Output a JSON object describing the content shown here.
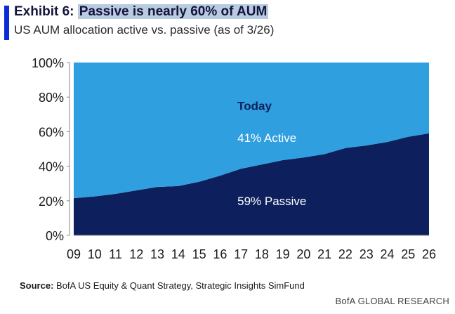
{
  "header": {
    "exhibit_label": "Exhibit 6:",
    "title": "Passive is nearly 60% of AUM",
    "subtitle": "US AUM allocation active vs. passive (as of 3/26)"
  },
  "footer": {
    "source_label": "Source:",
    "source_text": "BofA US Equity & Quant Strategy, Strategic Insights SimFund",
    "brand": "BofA GLOBAL RESEARCH"
  },
  "colors": {
    "passive": "#0d1f5c",
    "active": "#2f9fe0",
    "axis": "#8a8a8a"
  },
  "chart_data": {
    "type": "area",
    "stacked": true,
    "x": [
      9,
      10,
      11,
      12,
      13,
      14,
      15,
      16,
      17,
      18,
      19,
      20,
      21,
      22,
      23,
      24,
      25,
      26
    ],
    "tick_labels": [
      "09",
      "10",
      "11",
      "12",
      "13",
      "14",
      "15",
      "16",
      "17",
      "18",
      "19",
      "20",
      "21",
      "22",
      "23",
      "24",
      "25",
      "26"
    ],
    "ylim": [
      0,
      100
    ],
    "yticks": [
      0,
      20,
      40,
      60,
      80,
      100
    ],
    "ytick_labels": [
      "0%",
      "20%",
      "40%",
      "60%",
      "80%",
      "100%"
    ],
    "series": [
      {
        "key": "passive",
        "values": [
          21.5,
          22.5,
          24,
          26,
          28,
          28.5,
          31,
          34.5,
          38.5,
          41,
          43.5,
          45,
          47,
          50.5,
          52,
          54,
          57,
          59
        ]
      },
      {
        "key": "active",
        "values": [
          78.5,
          77.5,
          76,
          74,
          72,
          71.5,
          69,
          65.5,
          61.5,
          59,
          56.5,
          55,
          53,
          49.5,
          48,
          46,
          43,
          41
        ]
      }
    ],
    "annotations": [
      {
        "text": "Today",
        "x": 17,
        "y": 75,
        "bold": true
      },
      {
        "text": "41% Active",
        "x": 17,
        "y": 56.5,
        "bold": false
      },
      {
        "text": "59% Passive",
        "x": 17,
        "y": 20,
        "bold": false
      }
    ]
  }
}
